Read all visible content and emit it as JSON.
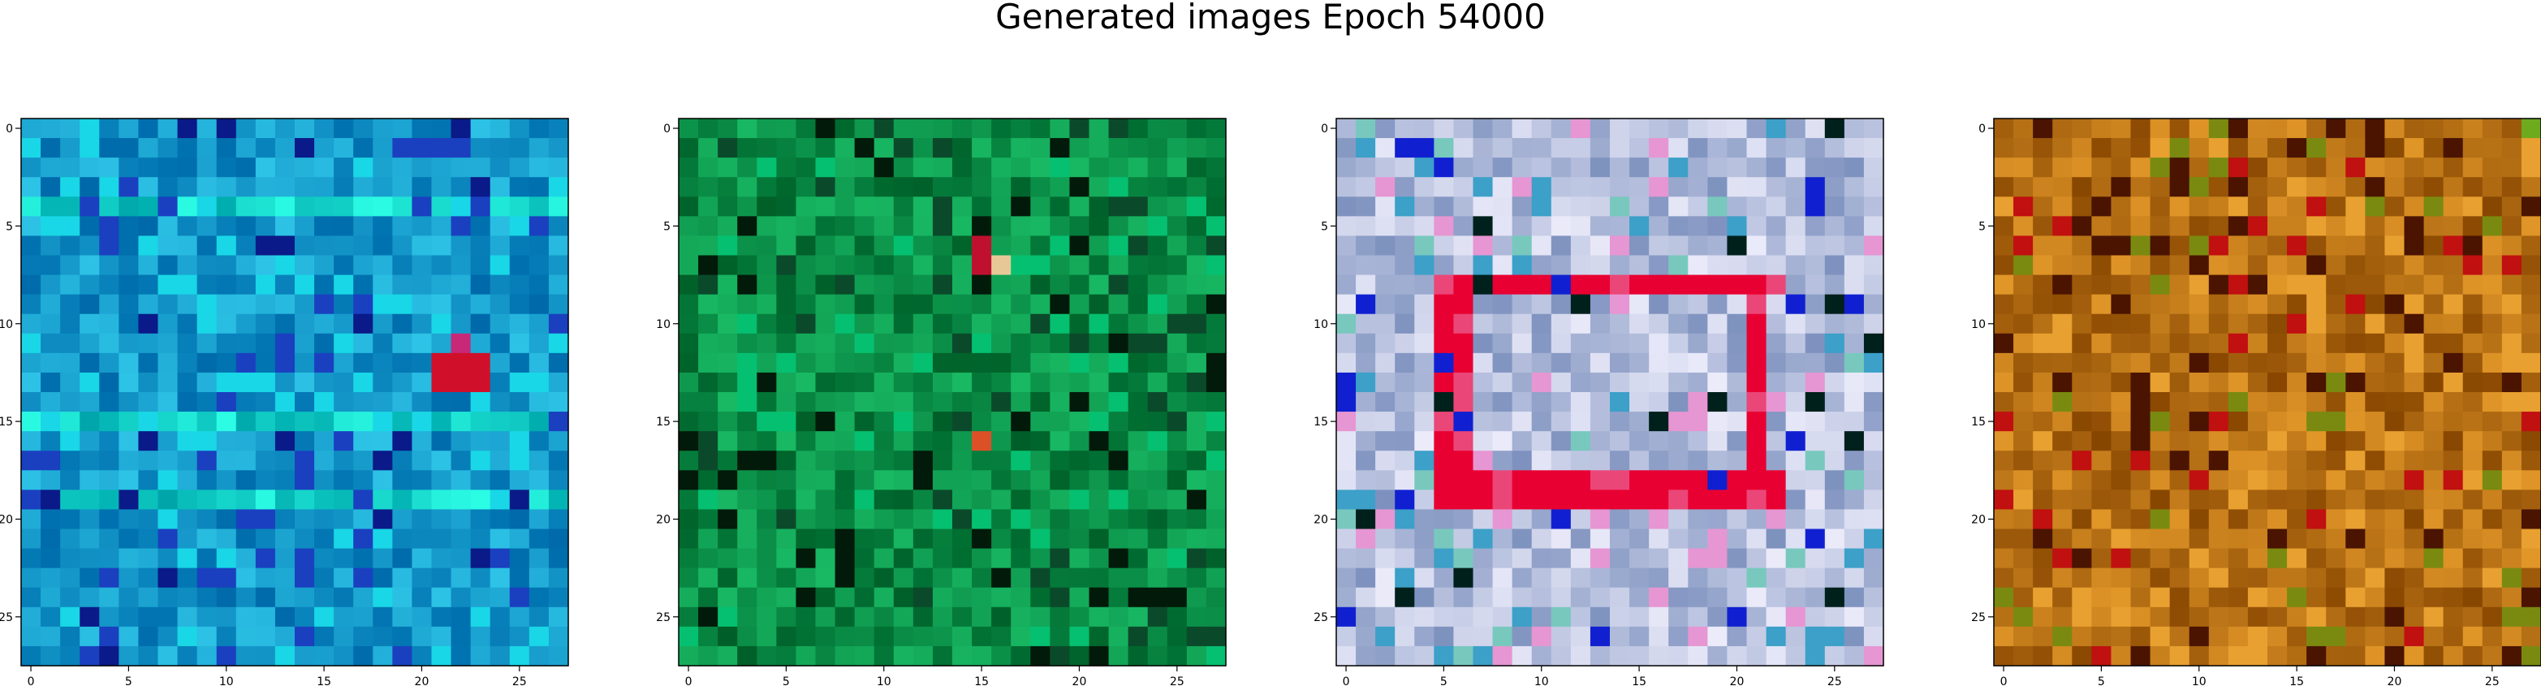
{
  "figure": {
    "title": "Generated images Epoch 54000"
  },
  "chart_data": {
    "type": "heatmap",
    "title": "Generated images Epoch 54000",
    "grid": false,
    "images": [
      {
        "description": "cyan/blue dominant noise with a small red blotch",
        "base_color": "#1aa6c8",
        "accents": [
          "#0a1a88",
          "#1a40c0",
          "#19d7e6",
          "#d0102a"
        ],
        "xlim": [
          -0.5,
          27.5
        ],
        "ylim": [
          27.5,
          -0.5
        ],
        "xticks": [
          0,
          5,
          10,
          15,
          20,
          25
        ],
        "yticks": [
          0,
          5,
          10,
          15,
          20,
          25
        ]
      },
      {
        "description": "green dominant noise",
        "base_color": "#0d8f48",
        "accents": [
          "#021a0a",
          "#05c070",
          "#0a4a2a",
          "#c01030"
        ],
        "xlim": [
          -0.5,
          27.5
        ],
        "ylim": [
          27.5,
          -0.5
        ],
        "xticks": [
          0,
          5,
          10,
          15,
          20,
          25
        ],
        "yticks": [
          0,
          5,
          10,
          15,
          20,
          25
        ]
      },
      {
        "description": "pastel noise with a red ring shape",
        "base_color": "#b8c4e0",
        "accents": [
          "#e80032",
          "#f060c0",
          "#1020d0",
          "#00201c"
        ],
        "xlim": [
          -0.5,
          27.5
        ],
        "ylim": [
          27.5,
          -0.5
        ],
        "xticks": [
          0,
          5,
          10,
          15,
          20,
          25
        ],
        "yticks": [
          0,
          5,
          10,
          15,
          20,
          25
        ]
      },
      {
        "description": "orange/brown dominant noise",
        "base_color": "#b87a12",
        "accents": [
          "#4a1400",
          "#e8a030",
          "#7a8a10",
          "#c01010"
        ],
        "xlim": [
          -0.5,
          27.5
        ],
        "ylim": [
          27.5,
          -0.5
        ],
        "xticks": [
          0,
          5,
          10,
          15,
          20,
          25
        ],
        "yticks": [
          0,
          5,
          10,
          15,
          20,
          25
        ]
      }
    ]
  }
}
